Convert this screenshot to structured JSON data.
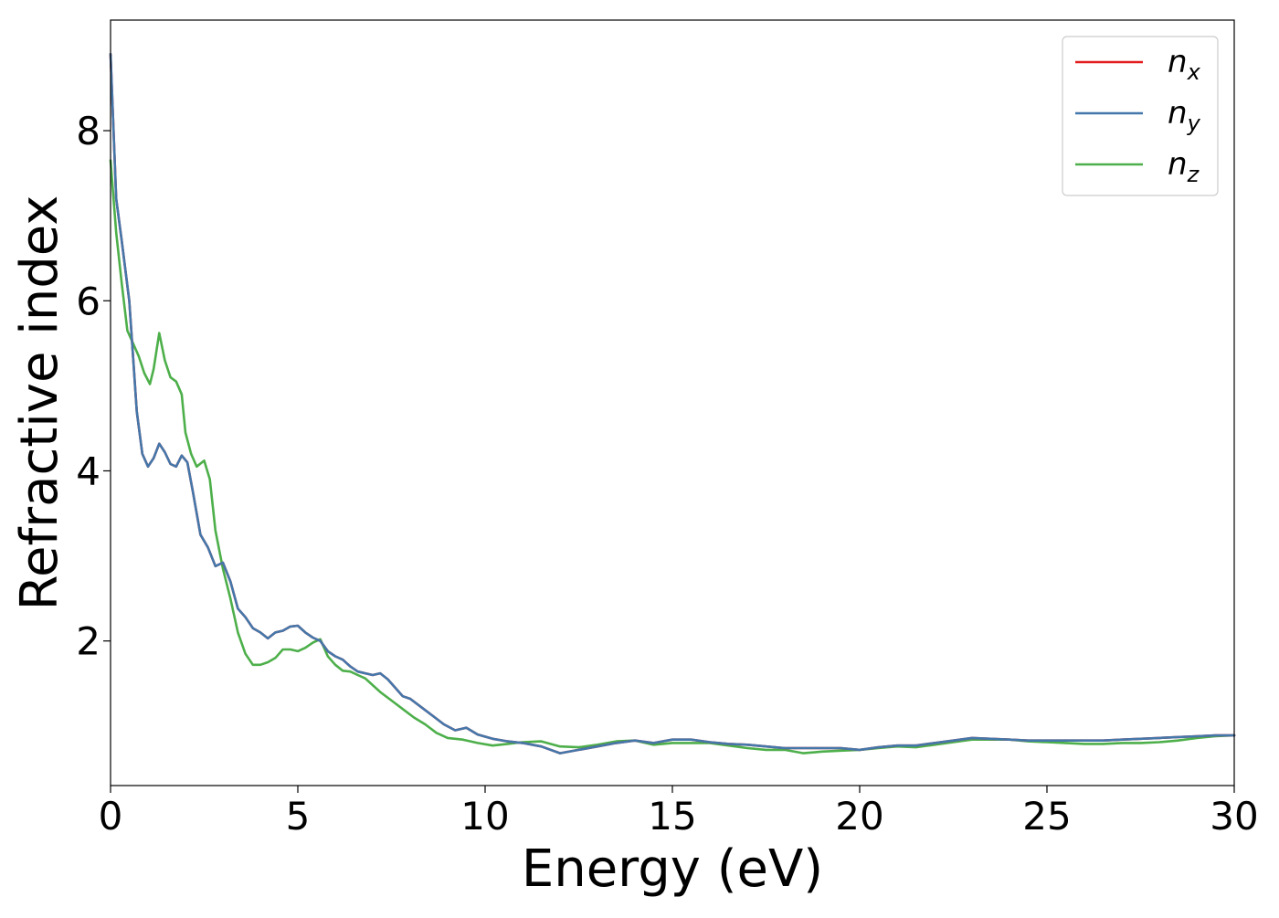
{
  "chart_data": {
    "type": "line",
    "title": "",
    "xlabel": "Energy (eV)",
    "ylabel": "Refractive index",
    "xlim": [
      0,
      30
    ],
    "ylim": [
      0.3,
      9.3
    ],
    "x_ticks": [
      0,
      5,
      10,
      15,
      20,
      25,
      30
    ],
    "y_ticks": [
      2,
      4,
      6,
      8
    ],
    "grid": false,
    "legend_position": "top-right",
    "series": [
      {
        "name": "n_x",
        "label_base": "n",
        "label_sub": "x",
        "color": "#e41a1c",
        "x": [
          0,
          0.15,
          0.3,
          0.5,
          0.7,
          0.85,
          1.0,
          1.15,
          1.3,
          1.45,
          1.6,
          1.75,
          1.9,
          2.05,
          2.2,
          2.4,
          2.6,
          2.8,
          3.0,
          3.2,
          3.4,
          3.6,
          3.8,
          4.0,
          4.2,
          4.4,
          4.6,
          4.8,
          5.0,
          5.2,
          5.4,
          5.6,
          5.8,
          6.0,
          6.2,
          6.4,
          6.6,
          6.8,
          7.0,
          7.2,
          7.4,
          7.6,
          7.8,
          8.0,
          8.3,
          8.6,
          8.9,
          9.2,
          9.5,
          9.8,
          10.2,
          10.6,
          11.0,
          11.5,
          12.0,
          12.5,
          13.0,
          13.5,
          14.0,
          14.5,
          15.0,
          15.5,
          16.0,
          16.5,
          17.0,
          17.5,
          18.0,
          18.5,
          19.0,
          19.5,
          20.0,
          20.5,
          21.0,
          21.5,
          22.0,
          22.5,
          23.0,
          23.5,
          24.0,
          24.5,
          25.0,
          25.5,
          26.0,
          26.5,
          27.0,
          27.5,
          28.0,
          28.5,
          29.0,
          29.5,
          30.0
        ],
        "values": [
          8.9,
          7.2,
          6.7,
          6.0,
          4.7,
          4.2,
          4.05,
          4.15,
          4.32,
          4.22,
          4.08,
          4.05,
          4.18,
          4.1,
          3.75,
          3.25,
          3.1,
          2.88,
          2.92,
          2.7,
          2.38,
          2.28,
          2.15,
          2.1,
          2.03,
          2.1,
          2.12,
          2.17,
          2.18,
          2.1,
          2.04,
          2.0,
          1.88,
          1.82,
          1.78,
          1.7,
          1.64,
          1.62,
          1.6,
          1.62,
          1.55,
          1.45,
          1.35,
          1.32,
          1.22,
          1.12,
          1.02,
          0.95,
          0.98,
          0.9,
          0.85,
          0.82,
          0.8,
          0.76,
          0.68,
          0.72,
          0.76,
          0.8,
          0.83,
          0.8,
          0.84,
          0.84,
          0.81,
          0.79,
          0.78,
          0.76,
          0.74,
          0.74,
          0.74,
          0.74,
          0.72,
          0.75,
          0.77,
          0.77,
          0.8,
          0.83,
          0.86,
          0.85,
          0.84,
          0.83,
          0.83,
          0.83,
          0.83,
          0.83,
          0.84,
          0.85,
          0.86,
          0.87,
          0.88,
          0.89,
          0.89
        ]
      },
      {
        "name": "n_y",
        "label_base": "n",
        "label_sub": "y",
        "color": "#4477aa",
        "x": [
          0,
          0.15,
          0.3,
          0.5,
          0.7,
          0.85,
          1.0,
          1.15,
          1.3,
          1.45,
          1.6,
          1.75,
          1.9,
          2.05,
          2.2,
          2.4,
          2.6,
          2.8,
          3.0,
          3.2,
          3.4,
          3.6,
          3.8,
          4.0,
          4.2,
          4.4,
          4.6,
          4.8,
          5.0,
          5.2,
          5.4,
          5.6,
          5.8,
          6.0,
          6.2,
          6.4,
          6.6,
          6.8,
          7.0,
          7.2,
          7.4,
          7.6,
          7.8,
          8.0,
          8.3,
          8.6,
          8.9,
          9.2,
          9.5,
          9.8,
          10.2,
          10.6,
          11.0,
          11.5,
          12.0,
          12.5,
          13.0,
          13.5,
          14.0,
          14.5,
          15.0,
          15.5,
          16.0,
          16.5,
          17.0,
          17.5,
          18.0,
          18.5,
          19.0,
          19.5,
          20.0,
          20.5,
          21.0,
          21.5,
          22.0,
          22.5,
          23.0,
          23.5,
          24.0,
          24.5,
          25.0,
          25.5,
          26.0,
          26.5,
          27.0,
          27.5,
          28.0,
          28.5,
          29.0,
          29.5,
          30.0
        ],
        "values": [
          8.9,
          7.2,
          6.7,
          6.0,
          4.7,
          4.2,
          4.05,
          4.15,
          4.32,
          4.22,
          4.08,
          4.05,
          4.18,
          4.1,
          3.75,
          3.25,
          3.1,
          2.88,
          2.92,
          2.7,
          2.38,
          2.28,
          2.15,
          2.1,
          2.03,
          2.1,
          2.12,
          2.17,
          2.18,
          2.1,
          2.04,
          2.0,
          1.88,
          1.82,
          1.78,
          1.7,
          1.64,
          1.62,
          1.6,
          1.62,
          1.55,
          1.45,
          1.35,
          1.32,
          1.22,
          1.12,
          1.02,
          0.95,
          0.98,
          0.9,
          0.85,
          0.82,
          0.8,
          0.76,
          0.68,
          0.72,
          0.76,
          0.8,
          0.83,
          0.8,
          0.84,
          0.84,
          0.81,
          0.79,
          0.78,
          0.76,
          0.74,
          0.74,
          0.74,
          0.74,
          0.72,
          0.75,
          0.77,
          0.77,
          0.8,
          0.83,
          0.86,
          0.85,
          0.84,
          0.83,
          0.83,
          0.83,
          0.83,
          0.83,
          0.84,
          0.85,
          0.86,
          0.87,
          0.88,
          0.89,
          0.89
        ]
      },
      {
        "name": "n_z",
        "label_base": "n",
        "label_sub": "z",
        "color": "#4daf4a",
        "x": [
          0,
          0.15,
          0.3,
          0.45,
          0.6,
          0.75,
          0.9,
          1.05,
          1.15,
          1.3,
          1.45,
          1.6,
          1.75,
          1.9,
          2.0,
          2.15,
          2.3,
          2.5,
          2.65,
          2.8,
          3.0,
          3.2,
          3.4,
          3.6,
          3.8,
          4.0,
          4.2,
          4.4,
          4.6,
          4.8,
          5.0,
          5.2,
          5.4,
          5.6,
          5.8,
          6.0,
          6.2,
          6.4,
          6.6,
          6.8,
          7.0,
          7.2,
          7.5,
          7.8,
          8.1,
          8.4,
          8.7,
          9.0,
          9.4,
          9.8,
          10.2,
          10.6,
          11.0,
          11.5,
          12.0,
          12.5,
          13.0,
          13.5,
          14.0,
          14.5,
          15.0,
          15.5,
          16.0,
          16.5,
          17.0,
          17.5,
          18.0,
          18.5,
          19.0,
          19.5,
          20.0,
          20.5,
          21.0,
          21.5,
          22.0,
          22.5,
          23.0,
          23.5,
          24.0,
          24.5,
          25.0,
          25.5,
          26.0,
          26.5,
          27.0,
          27.5,
          28.0,
          28.5,
          29.0,
          29.5,
          30.0
        ],
        "values": [
          7.65,
          6.8,
          6.2,
          5.65,
          5.5,
          5.35,
          5.15,
          5.02,
          5.2,
          5.62,
          5.3,
          5.1,
          5.05,
          4.9,
          4.45,
          4.2,
          4.05,
          4.12,
          3.9,
          3.3,
          2.85,
          2.5,
          2.1,
          1.85,
          1.72,
          1.72,
          1.75,
          1.8,
          1.9,
          1.9,
          1.88,
          1.92,
          1.98,
          2.02,
          1.82,
          1.72,
          1.65,
          1.64,
          1.6,
          1.56,
          1.48,
          1.4,
          1.3,
          1.2,
          1.1,
          1.02,
          0.92,
          0.86,
          0.84,
          0.8,
          0.77,
          0.79,
          0.81,
          0.82,
          0.76,
          0.75,
          0.78,
          0.82,
          0.83,
          0.78,
          0.8,
          0.8,
          0.8,
          0.77,
          0.74,
          0.72,
          0.72,
          0.68,
          0.7,
          0.71,
          0.72,
          0.74,
          0.76,
          0.75,
          0.78,
          0.81,
          0.84,
          0.84,
          0.84,
          0.82,
          0.81,
          0.8,
          0.79,
          0.79,
          0.8,
          0.8,
          0.81,
          0.83,
          0.86,
          0.88,
          0.89
        ]
      }
    ]
  }
}
